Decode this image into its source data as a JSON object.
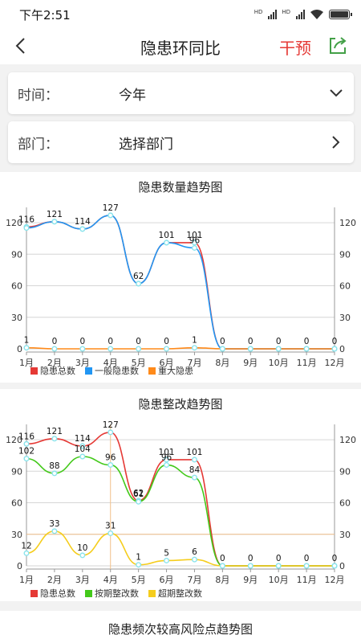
{
  "status": {
    "time": "下午2:51"
  },
  "header": {
    "title": "隐患环同比",
    "intervene_label": "干预"
  },
  "filters": {
    "time": {
      "label": "时间：",
      "value": "今年"
    },
    "dept": {
      "label": "部门：",
      "value": "选择部门"
    }
  },
  "colors": {
    "red": "#e53935",
    "blue": "#2196f3",
    "orange": "#ff8a1a",
    "green": "#43c91a",
    "yellow": "#f5cd1d",
    "point": "#8be4ec"
  },
  "chart_data": [
    {
      "type": "line",
      "title": "隐患数量趋势图",
      "categories": [
        "1月",
        "2月",
        "3月",
        "4月",
        "5月",
        "6月",
        "7月",
        "8月",
        "9月",
        "10月",
        "11月",
        "12月"
      ],
      "ylim": [
        0,
        130
      ],
      "yticks": [
        0,
        30,
        60,
        90,
        120
      ],
      "series": [
        {
          "name": "隐患总数",
          "color": "#e53935",
          "values": [
            116,
            121,
            114,
            127,
            62,
            101,
            101,
            0,
            0,
            0,
            0,
            0
          ]
        },
        {
          "name": "一般隐患数",
          "color": "#2196f3",
          "values": [
            115,
            121,
            114,
            127,
            62,
            101,
            96,
            0,
            0,
            0,
            0,
            0
          ]
        },
        {
          "name": "重大隐患",
          "color": "#ff8a1a",
          "values": [
            1,
            0,
            0,
            0,
            0,
            0,
            1,
            0,
            0,
            0,
            0,
            0
          ]
        }
      ],
      "labels": [
        {
          "text": "116",
          "i": 0,
          "v": 116
        },
        {
          "text": "121",
          "i": 1,
          "v": 121
        },
        {
          "text": "114",
          "i": 2,
          "v": 114
        },
        {
          "text": "127",
          "i": 3,
          "v": 127
        },
        {
          "text": "62",
          "i": 4,
          "v": 62
        },
        {
          "text": "101",
          "i": 5,
          "v": 101
        },
        {
          "text": "101",
          "i": 6,
          "v": 101
        },
        {
          "text": "96",
          "i": 6,
          "v": 96
        },
        {
          "text": "0",
          "i": 7,
          "v": 0
        },
        {
          "text": "0",
          "i": 8,
          "v": 0
        },
        {
          "text": "0",
          "i": 9,
          "v": 0
        },
        {
          "text": "0",
          "i": 10,
          "v": 0
        },
        {
          "text": "0",
          "i": 11,
          "v": 0
        },
        {
          "text": "1",
          "i": 0,
          "v": 1
        },
        {
          "text": "0",
          "i": 1,
          "v": 0
        },
        {
          "text": "0",
          "i": 2,
          "v": 0
        },
        {
          "text": "0",
          "i": 3,
          "v": 0
        },
        {
          "text": "0",
          "i": 4,
          "v": 0
        },
        {
          "text": "0",
          "i": 5,
          "v": 0
        },
        {
          "text": "1",
          "i": 6,
          "v": 1
        }
      ]
    },
    {
      "type": "line",
      "title": "隐患整改趋势图",
      "categories": [
        "1月",
        "2月",
        "3月",
        "4月",
        "5月",
        "6月",
        "7月",
        "8月",
        "9月",
        "10月",
        "11月",
        "12月"
      ],
      "ylim": [
        0,
        130
      ],
      "yticks": [
        0,
        30,
        60,
        90,
        120
      ],
      "highlight": {
        "index": 3,
        "y": 30
      },
      "series": [
        {
          "name": "隐患总数",
          "color": "#e53935",
          "values": [
            116,
            121,
            114,
            127,
            62,
            101,
            101,
            0,
            0,
            0,
            0,
            0
          ]
        },
        {
          "name": "按期整改数",
          "color": "#43c91a",
          "values": [
            102,
            88,
            104,
            96,
            61,
            96,
            84,
            0,
            0,
            0,
            0,
            0
          ]
        },
        {
          "name": "超期整改数",
          "color": "#f5cd1d",
          "values": [
            12,
            33,
            10,
            31,
            1,
            5,
            6,
            0,
            0,
            0,
            0,
            0
          ]
        }
      ],
      "labels": [
        {
          "text": "116",
          "i": 0,
          "v": 116
        },
        {
          "text": "121",
          "i": 1,
          "v": 121
        },
        {
          "text": "114",
          "i": 2,
          "v": 114
        },
        {
          "text": "127",
          "i": 3,
          "v": 127
        },
        {
          "text": "62",
          "i": 4,
          "v": 62
        },
        {
          "text": "101",
          "i": 5,
          "v": 101
        },
        {
          "text": "101",
          "i": 6,
          "v": 101
        },
        {
          "text": "102",
          "i": 0,
          "v": 102
        },
        {
          "text": "88",
          "i": 1,
          "v": 88
        },
        {
          "text": "104",
          "i": 2,
          "v": 104
        },
        {
          "text": "96",
          "i": 3,
          "v": 96
        },
        {
          "text": "61",
          "i": 4,
          "v": 61
        },
        {
          "text": "96",
          "i": 5,
          "v": 96
        },
        {
          "text": "84",
          "i": 6,
          "v": 84
        },
        {
          "text": "12",
          "i": 0,
          "v": 12
        },
        {
          "text": "33",
          "i": 1,
          "v": 33
        },
        {
          "text": "10",
          "i": 2,
          "v": 10
        },
        {
          "text": "31",
          "i": 3,
          "v": 31
        },
        {
          "text": "1",
          "i": 4,
          "v": 1
        },
        {
          "text": "5",
          "i": 5,
          "v": 5
        },
        {
          "text": "6",
          "i": 6,
          "v": 6
        },
        {
          "text": "0",
          "i": 7,
          "v": 0
        },
        {
          "text": "0",
          "i": 8,
          "v": 0
        },
        {
          "text": "0",
          "i": 9,
          "v": 0
        },
        {
          "text": "0",
          "i": 10,
          "v": 0
        },
        {
          "text": "0",
          "i": 11,
          "v": 0
        }
      ]
    }
  ],
  "next_section": {
    "title": "隐患频次较高风险点趋势图"
  }
}
